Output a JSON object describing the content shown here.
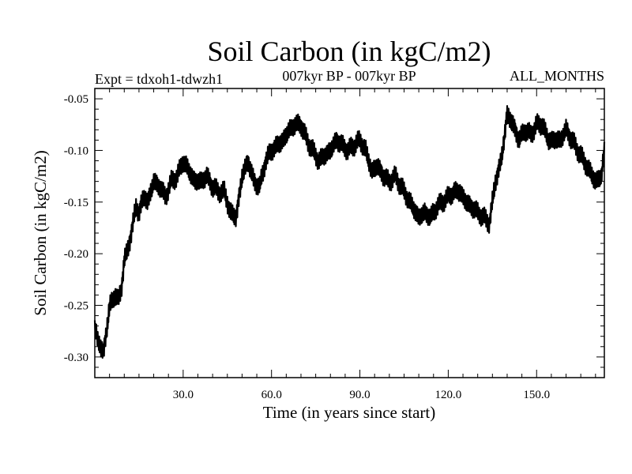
{
  "chart_data": {
    "type": "line",
    "title": "Soil Carbon (in kgC/m2)",
    "subtitle_left": "Expt = tdxoh1-tdwzh1",
    "subtitle_center": "007kyr BP - 007kyr BP",
    "subtitle_right": "ALL_MONTHS",
    "xlabel": "Time (in years since start)",
    "ylabel": "Soil Carbon (in kgC/m2)",
    "xlim": [
      0,
      173
    ],
    "ylim": [
      -0.32,
      -0.04
    ],
    "x_ticks": [
      30,
      60,
      90,
      120,
      150
    ],
    "x_tick_labels": [
      "30.0",
      "60.0",
      "90.0",
      "120.0",
      "150.0"
    ],
    "y_ticks": [
      -0.05,
      -0.1,
      -0.15,
      -0.2,
      -0.25,
      -0.3
    ],
    "y_tick_labels": [
      "-0.05",
      "-0.10",
      "-0.15",
      "-0.20",
      "-0.25",
      "-0.30"
    ],
    "grid": false,
    "line_color": "#000000",
    "series": [
      {
        "x": [
          0,
          1,
          2,
          3,
          4,
          5,
          6,
          7,
          8,
          9,
          10,
          11,
          12,
          13,
          14,
          15,
          16,
          17,
          18,
          19,
          20,
          22,
          24,
          26,
          28,
          30,
          32,
          34,
          36,
          38,
          40,
          42,
          44,
          46,
          48,
          50,
          52,
          54,
          56,
          58,
          60,
          62,
          64,
          66,
          68,
          70,
          72,
          74,
          76,
          78,
          80,
          82,
          84,
          86,
          88,
          90,
          92,
          94,
          96,
          98,
          100,
          102,
          104,
          106,
          108,
          110,
          112,
          114,
          116,
          118,
          120,
          122,
          124,
          126,
          128,
          130,
          132,
          134,
          136,
          138,
          140,
          142,
          144,
          146,
          148,
          150,
          152,
          154,
          156,
          158,
          160,
          162,
          164,
          166,
          168,
          170,
          172,
          173
        ],
        "y": [
          -0.27,
          -0.285,
          -0.29,
          -0.295,
          -0.275,
          -0.25,
          -0.245,
          -0.24,
          -0.245,
          -0.235,
          -0.205,
          -0.2,
          -0.185,
          -0.17,
          -0.155,
          -0.16,
          -0.15,
          -0.145,
          -0.15,
          -0.14,
          -0.13,
          -0.135,
          -0.145,
          -0.13,
          -0.125,
          -0.11,
          -0.12,
          -0.13,
          -0.13,
          -0.125,
          -0.135,
          -0.14,
          -0.14,
          -0.16,
          -0.165,
          -0.125,
          -0.11,
          -0.13,
          -0.135,
          -0.11,
          -0.1,
          -0.095,
          -0.09,
          -0.08,
          -0.075,
          -0.075,
          -0.09,
          -0.1,
          -0.11,
          -0.105,
          -0.1,
          -0.09,
          -0.095,
          -0.1,
          -0.095,
          -0.09,
          -0.1,
          -0.12,
          -0.115,
          -0.125,
          -0.13,
          -0.125,
          -0.135,
          -0.145,
          -0.155,
          -0.165,
          -0.16,
          -0.165,
          -0.155,
          -0.15,
          -0.145,
          -0.14,
          -0.14,
          -0.15,
          -0.155,
          -0.16,
          -0.165,
          -0.17,
          -0.13,
          -0.11,
          -0.065,
          -0.075,
          -0.09,
          -0.08,
          -0.085,
          -0.075,
          -0.075,
          -0.09,
          -0.09,
          -0.09,
          -0.08,
          -0.09,
          -0.1,
          -0.11,
          -0.12,
          -0.13,
          -0.125,
          -0.1
        ]
      }
    ]
  }
}
